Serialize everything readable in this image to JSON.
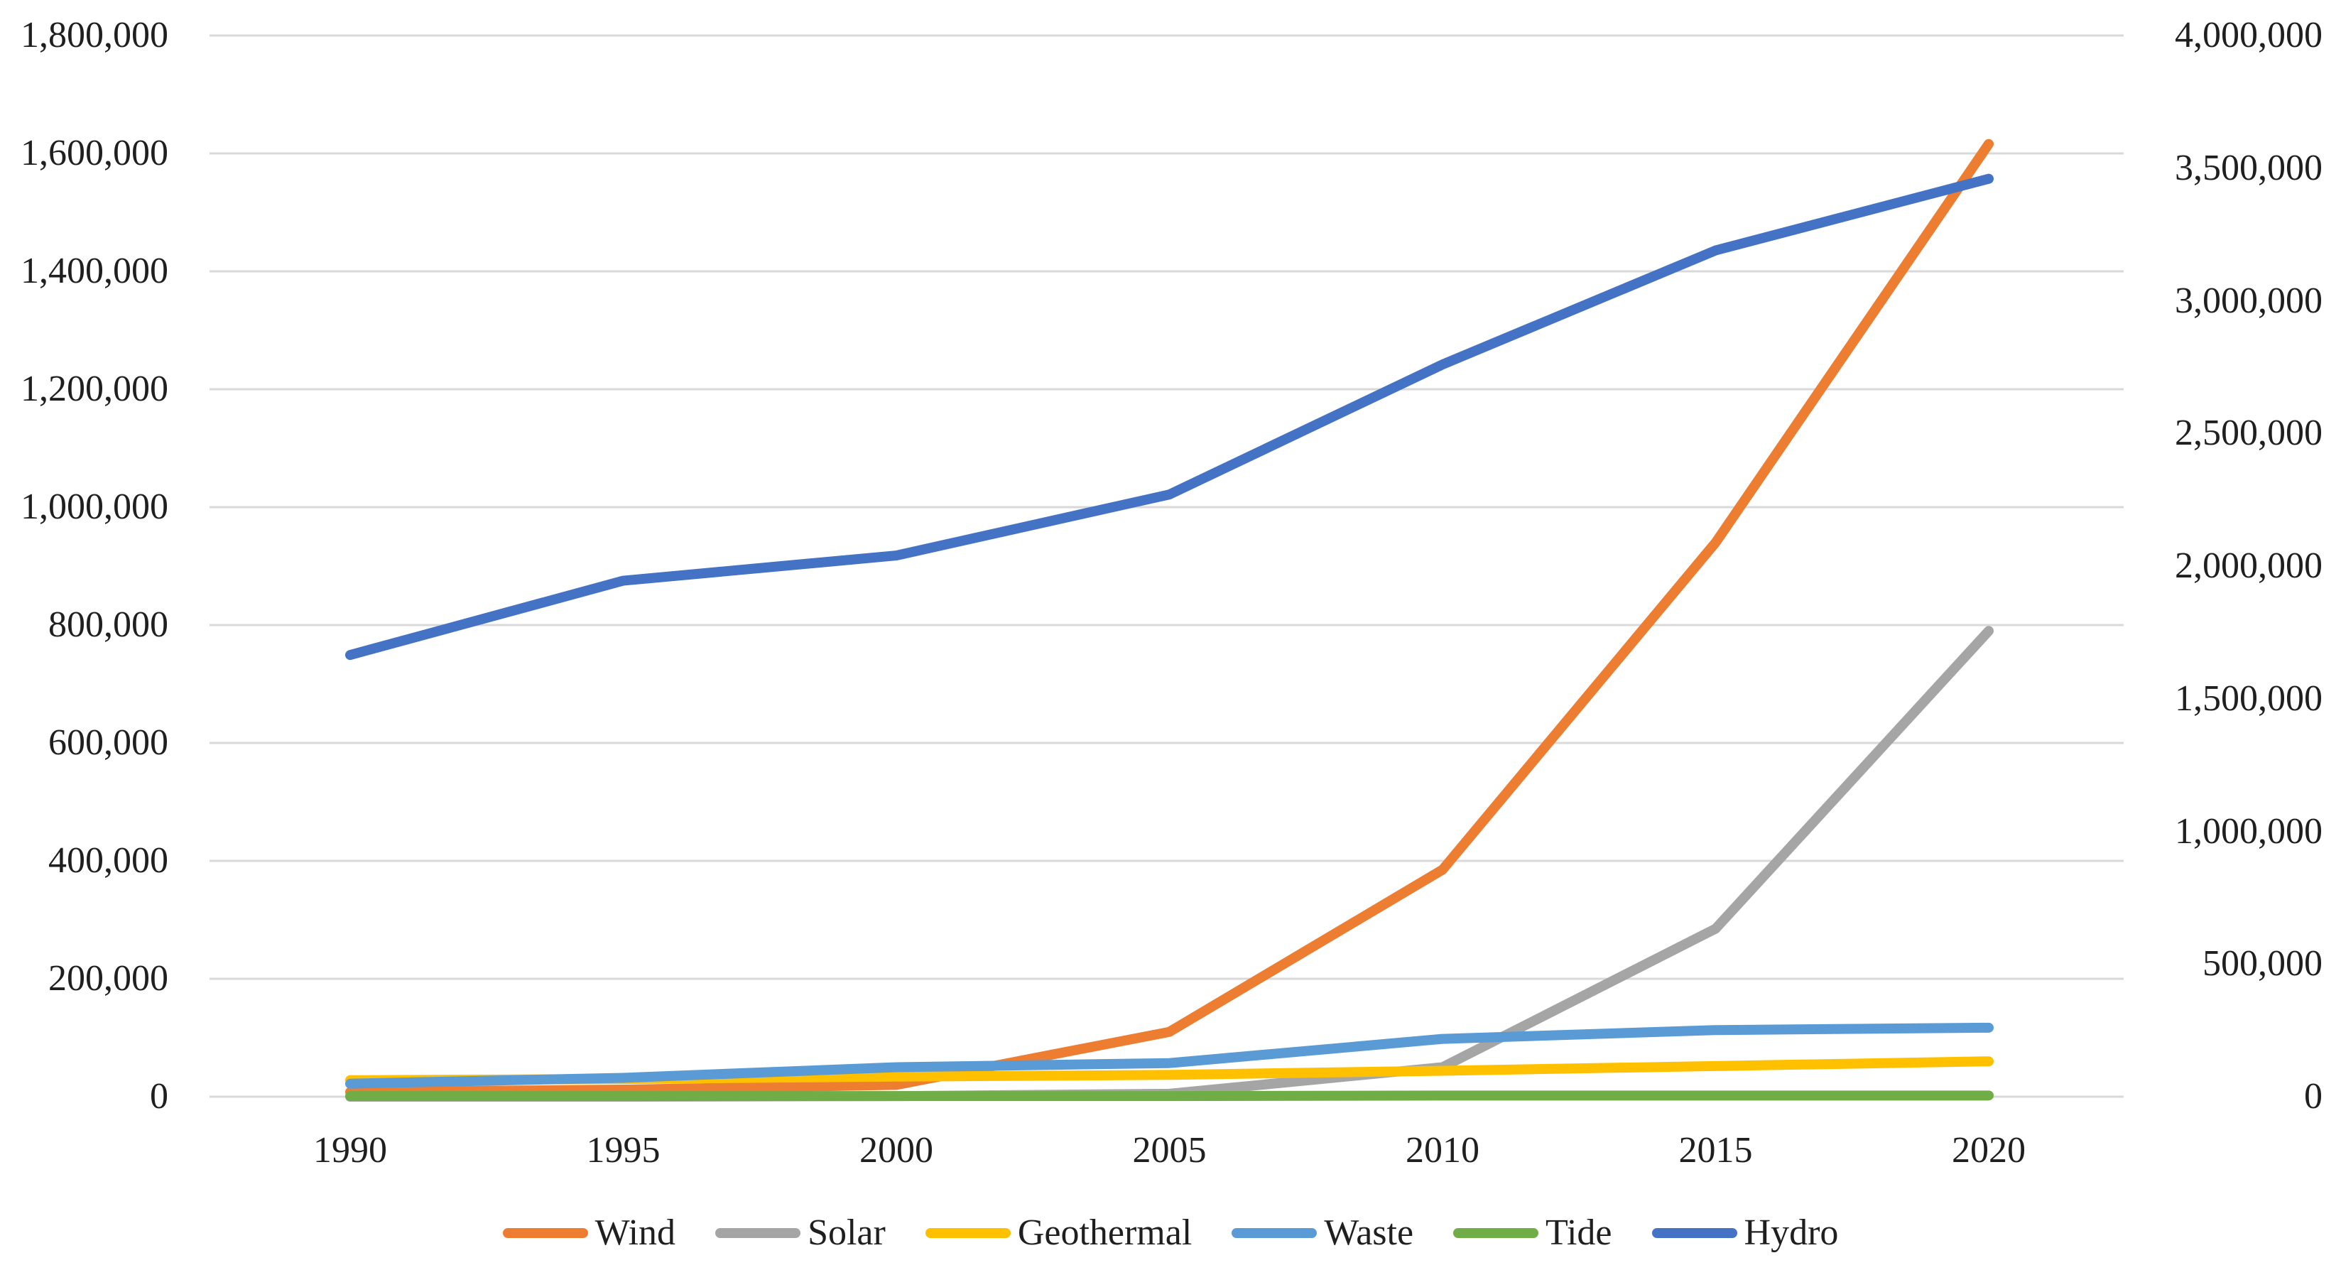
{
  "chart_data": {
    "type": "line",
    "title": "",
    "categories": [
      "1990",
      "1995",
      "2000",
      "2005",
      "2010",
      "2015",
      "2020"
    ],
    "series": [
      {
        "name": "Wind",
        "axis": "left",
        "color": "#ED7D31",
        "values": [
          8000,
          12000,
          20000,
          110000,
          385000,
          940000,
          1616000
        ]
      },
      {
        "name": "Solar",
        "axis": "left",
        "color": "#A5A5A5",
        "values": [
          0,
          0,
          1000,
          5000,
          50000,
          285000,
          790000
        ]
      },
      {
        "name": "Geothermal",
        "axis": "left",
        "color": "#FFC000",
        "values": [
          28000,
          30000,
          34000,
          37000,
          44000,
          52000,
          60000
        ]
      },
      {
        "name": "Waste",
        "axis": "left",
        "color": "#5B9BD5",
        "values": [
          22000,
          32000,
          50000,
          57000,
          98000,
          113000,
          117000
        ]
      },
      {
        "name": "Tide",
        "axis": "left",
        "color": "#70AD47",
        "values": [
          1000,
          1000,
          1000,
          1000,
          2000,
          2000,
          2000
        ]
      },
      {
        "name": "Hydro",
        "axis": "right",
        "color": "#4472C4",
        "values": [
          1665000,
          1945000,
          2040000,
          2270000,
          2760000,
          3190000,
          3460000
        ]
      }
    ],
    "left_axis": {
      "min": 0,
      "max": 1800000,
      "step": 200000,
      "tick_labels": [
        "0",
        "200,000",
        "400,000",
        "600,000",
        "800,000",
        "1,000,000",
        "1,200,000",
        "1,400,000",
        "1,600,000",
        "1,800,000"
      ]
    },
    "right_axis": {
      "min": 0,
      "max": 4000000,
      "step": 500000,
      "tick_labels": [
        "0",
        "500,000",
        "1,000,000",
        "1,500,000",
        "2,000,000",
        "2,500,000",
        "3,000,000",
        "3,500,000",
        "4,000,000"
      ]
    },
    "legend": [
      "Wind",
      "Solar",
      "Geothermal",
      "Waste",
      "Tide",
      "Hydro"
    ],
    "legend_position": "bottom",
    "grid": true,
    "grid_color": "#D9D9D9",
    "x_tick_labels": [
      "1990",
      "1995",
      "2000",
      "2005",
      "2010",
      "2015",
      "2020"
    ]
  }
}
